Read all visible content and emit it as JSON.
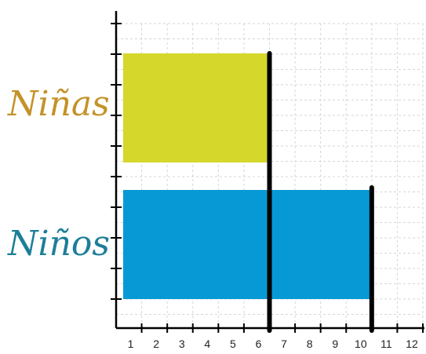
{
  "chart_data": {
    "type": "bar",
    "orientation": "horizontal",
    "categories": [
      "Niñas",
      "Niños"
    ],
    "values": [
      6,
      10
    ],
    "xlim": [
      0,
      12
    ],
    "x_ticks": [
      "1",
      "2",
      "3",
      "4",
      "5",
      "6",
      "7",
      "8",
      "9",
      "10",
      "11",
      "12"
    ],
    "grid": true,
    "bar_colors": [
      "#d5d72a",
      "#0799d6"
    ],
    "label_colors": [
      "#c49228",
      "#1d7e99"
    ],
    "axis_color": "#000000",
    "grid_color": "#d6d6d6"
  }
}
